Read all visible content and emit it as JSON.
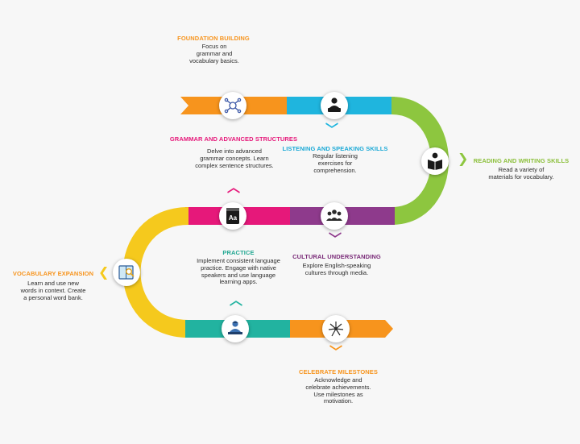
{
  "colors": {
    "orange": "#f7941d",
    "cyan": "#1fb5de",
    "green": "#8dc63f",
    "purple": "#8e3a8c",
    "magenta": "#e6187a",
    "yellow": "#f5c91d",
    "teal": "#22b3a0",
    "title_orange": "#f7941d",
    "title_cyan": "#1ba9d6",
    "title_green": "#8bbf3a",
    "title_magenta": "#e6187a",
    "title_teal": "#22a792",
    "title_purple": "#7a2b78"
  },
  "steps": {
    "foundation": {
      "title": "FOUNDATION BUILDING",
      "desc": "Focus on grammar and vocabulary basics.",
      "icon": "brain-network-icon"
    },
    "listening": {
      "title": "LISTENING AND SPEAKING SKILLS",
      "desc": "Regular listening exercises for comprehension.",
      "icon": "speaker-laptop-icon"
    },
    "reading": {
      "title": "READING AND WRITING SKILLS",
      "desc": "Read a variety of materials for vocabulary.",
      "icon": "reader-book-icon"
    },
    "grammar": {
      "title": "GRAMMAR AND ADVANCED STRUCTURES",
      "desc": "Delve into advanced grammar concepts. Learn complex sentence structures.",
      "icon": "dictionary-icon",
      "icon_text": "Aa"
    },
    "cultural": {
      "title": "CULTURAL UNDERSTANDING",
      "desc": "Explore English-speaking cultures through media.",
      "icon": "group-people-icon"
    },
    "vocabulary": {
      "title": "VOCABULARY EXPANSION",
      "desc": "Learn and use new words in context. Create a personal word bank.",
      "icon": "book-search-icon"
    },
    "practice": {
      "title": "PRACTICE",
      "desc": "Implement consistent language practice. Engage with native speakers and use language learning apps.",
      "icon": "student-desk-icon"
    },
    "milestones": {
      "title": "CELEBRATE MILESTONES",
      "desc": "Acknowledge and celebrate achievements. Use milestones as motivation.",
      "icon": "fireworks-icon"
    }
  }
}
